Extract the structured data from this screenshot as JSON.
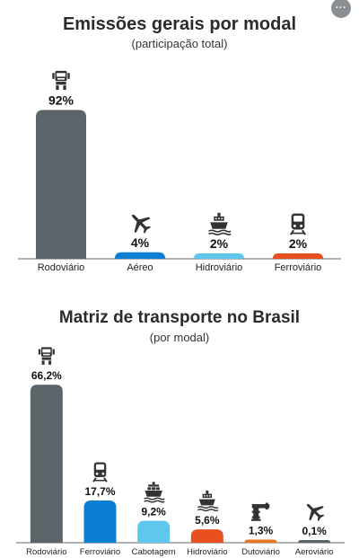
{
  "menu": {
    "label": "···"
  },
  "chart_data": [
    {
      "type": "bar",
      "title": "Emissões gerais por modal",
      "subtitle": "(participação total)",
      "categories": [
        "Rodoviário",
        "Aéreo",
        "Hidroviário",
        "Ferroviário"
      ],
      "values": [
        92,
        4,
        2,
        2
      ],
      "value_labels": [
        "92%",
        "4%",
        "2%",
        "2%"
      ],
      "icons": [
        "truck-icon",
        "airplane-icon",
        "ship-icon",
        "train-icon"
      ],
      "colors": [
        "#5b6468",
        "#0a7fd4",
        "#5fc6ec",
        "#e8501f"
      ],
      "ylim": [
        0,
        100
      ],
      "grid": false,
      "legend": "none"
    },
    {
      "type": "bar",
      "title": "Matriz de transporte no Brasil",
      "subtitle": "(por modal)",
      "categories": [
        "Rodoviário",
        "Ferroviário",
        "Cabotagem",
        "Hidroviário",
        "Dutoviário",
        "Aeroviário"
      ],
      "values": [
        66.2,
        17.7,
        9.2,
        5.6,
        1.3,
        0.1
      ],
      "value_labels": [
        "66,2%",
        "17,7%",
        "9,2%",
        "5,6%",
        "1,3%",
        "0,1%"
      ],
      "icons": [
        "truck-icon",
        "train-icon",
        "container-ship-icon",
        "ship-icon",
        "pipeline-icon",
        "airplane-icon"
      ],
      "colors": [
        "#5b6468",
        "#0a7fd4",
        "#5fc6ec",
        "#e8501f",
        "#e8761f",
        "#5b6468"
      ],
      "ylim": [
        0,
        70
      ],
      "grid": false,
      "legend": "none"
    }
  ]
}
